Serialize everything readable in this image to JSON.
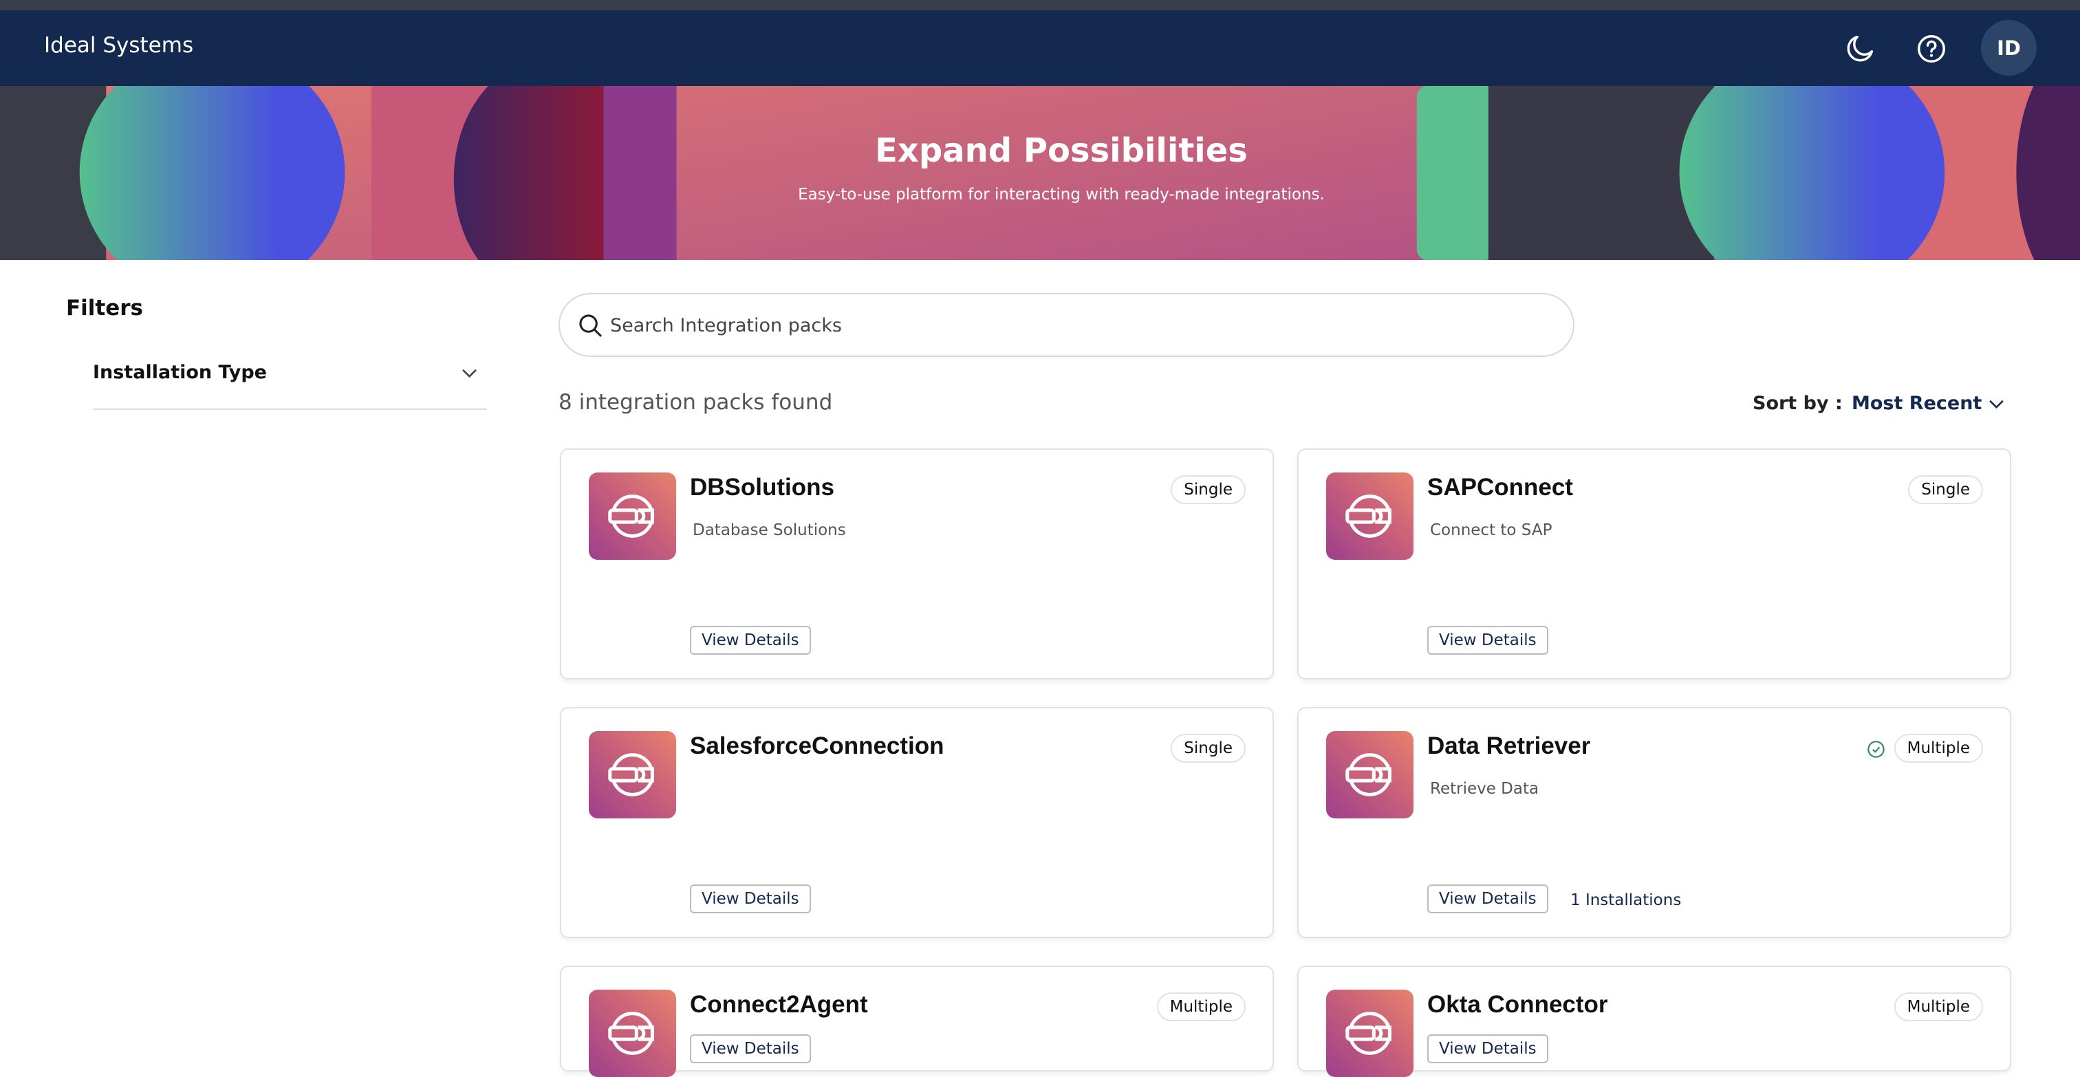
{
  "header": {
    "brand": "Ideal Systems",
    "avatar_initials": "ID",
    "icons": [
      "moon-icon",
      "help-icon"
    ]
  },
  "banner": {
    "title": "Expand Possibilities",
    "subtitle": "Easy-to-use platform for interacting with ready-made integrations."
  },
  "filters": {
    "title": "Filters",
    "groups": [
      {
        "label": "Installation Type"
      }
    ]
  },
  "search": {
    "placeholder": "Search Integration packs",
    "value": ""
  },
  "results": {
    "count_text": "8 integration packs found",
    "sort_label": "Sort by :",
    "sort_value": "Most Recent"
  },
  "colors": {
    "navy": "#13294f",
    "success": "#2e8b57"
  },
  "cards": [
    {
      "title": "DBSolutions",
      "description": "Database Solutions",
      "badge": "Single",
      "button": "View Details",
      "installed": false,
      "installations": ""
    },
    {
      "title": "SAPConnect",
      "description": "Connect to SAP",
      "badge": "Single",
      "button": "View Details",
      "installed": false,
      "installations": ""
    },
    {
      "title": "SalesforceConnection",
      "description": "",
      "badge": "Single",
      "button": "View Details",
      "installed": false,
      "installations": ""
    },
    {
      "title": "Data Retriever",
      "description": "Retrieve Data",
      "badge": "Multiple",
      "button": "View Details",
      "installed": true,
      "installations": "1 Installations"
    },
    {
      "title": "Connect2Agent",
      "description": "",
      "badge": "Multiple",
      "button": "View Details",
      "installed": false,
      "installations": ""
    },
    {
      "title": "Okta Connector",
      "description": "",
      "badge": "Multiple",
      "button": "View Details",
      "installed": false,
      "installations": ""
    }
  ]
}
